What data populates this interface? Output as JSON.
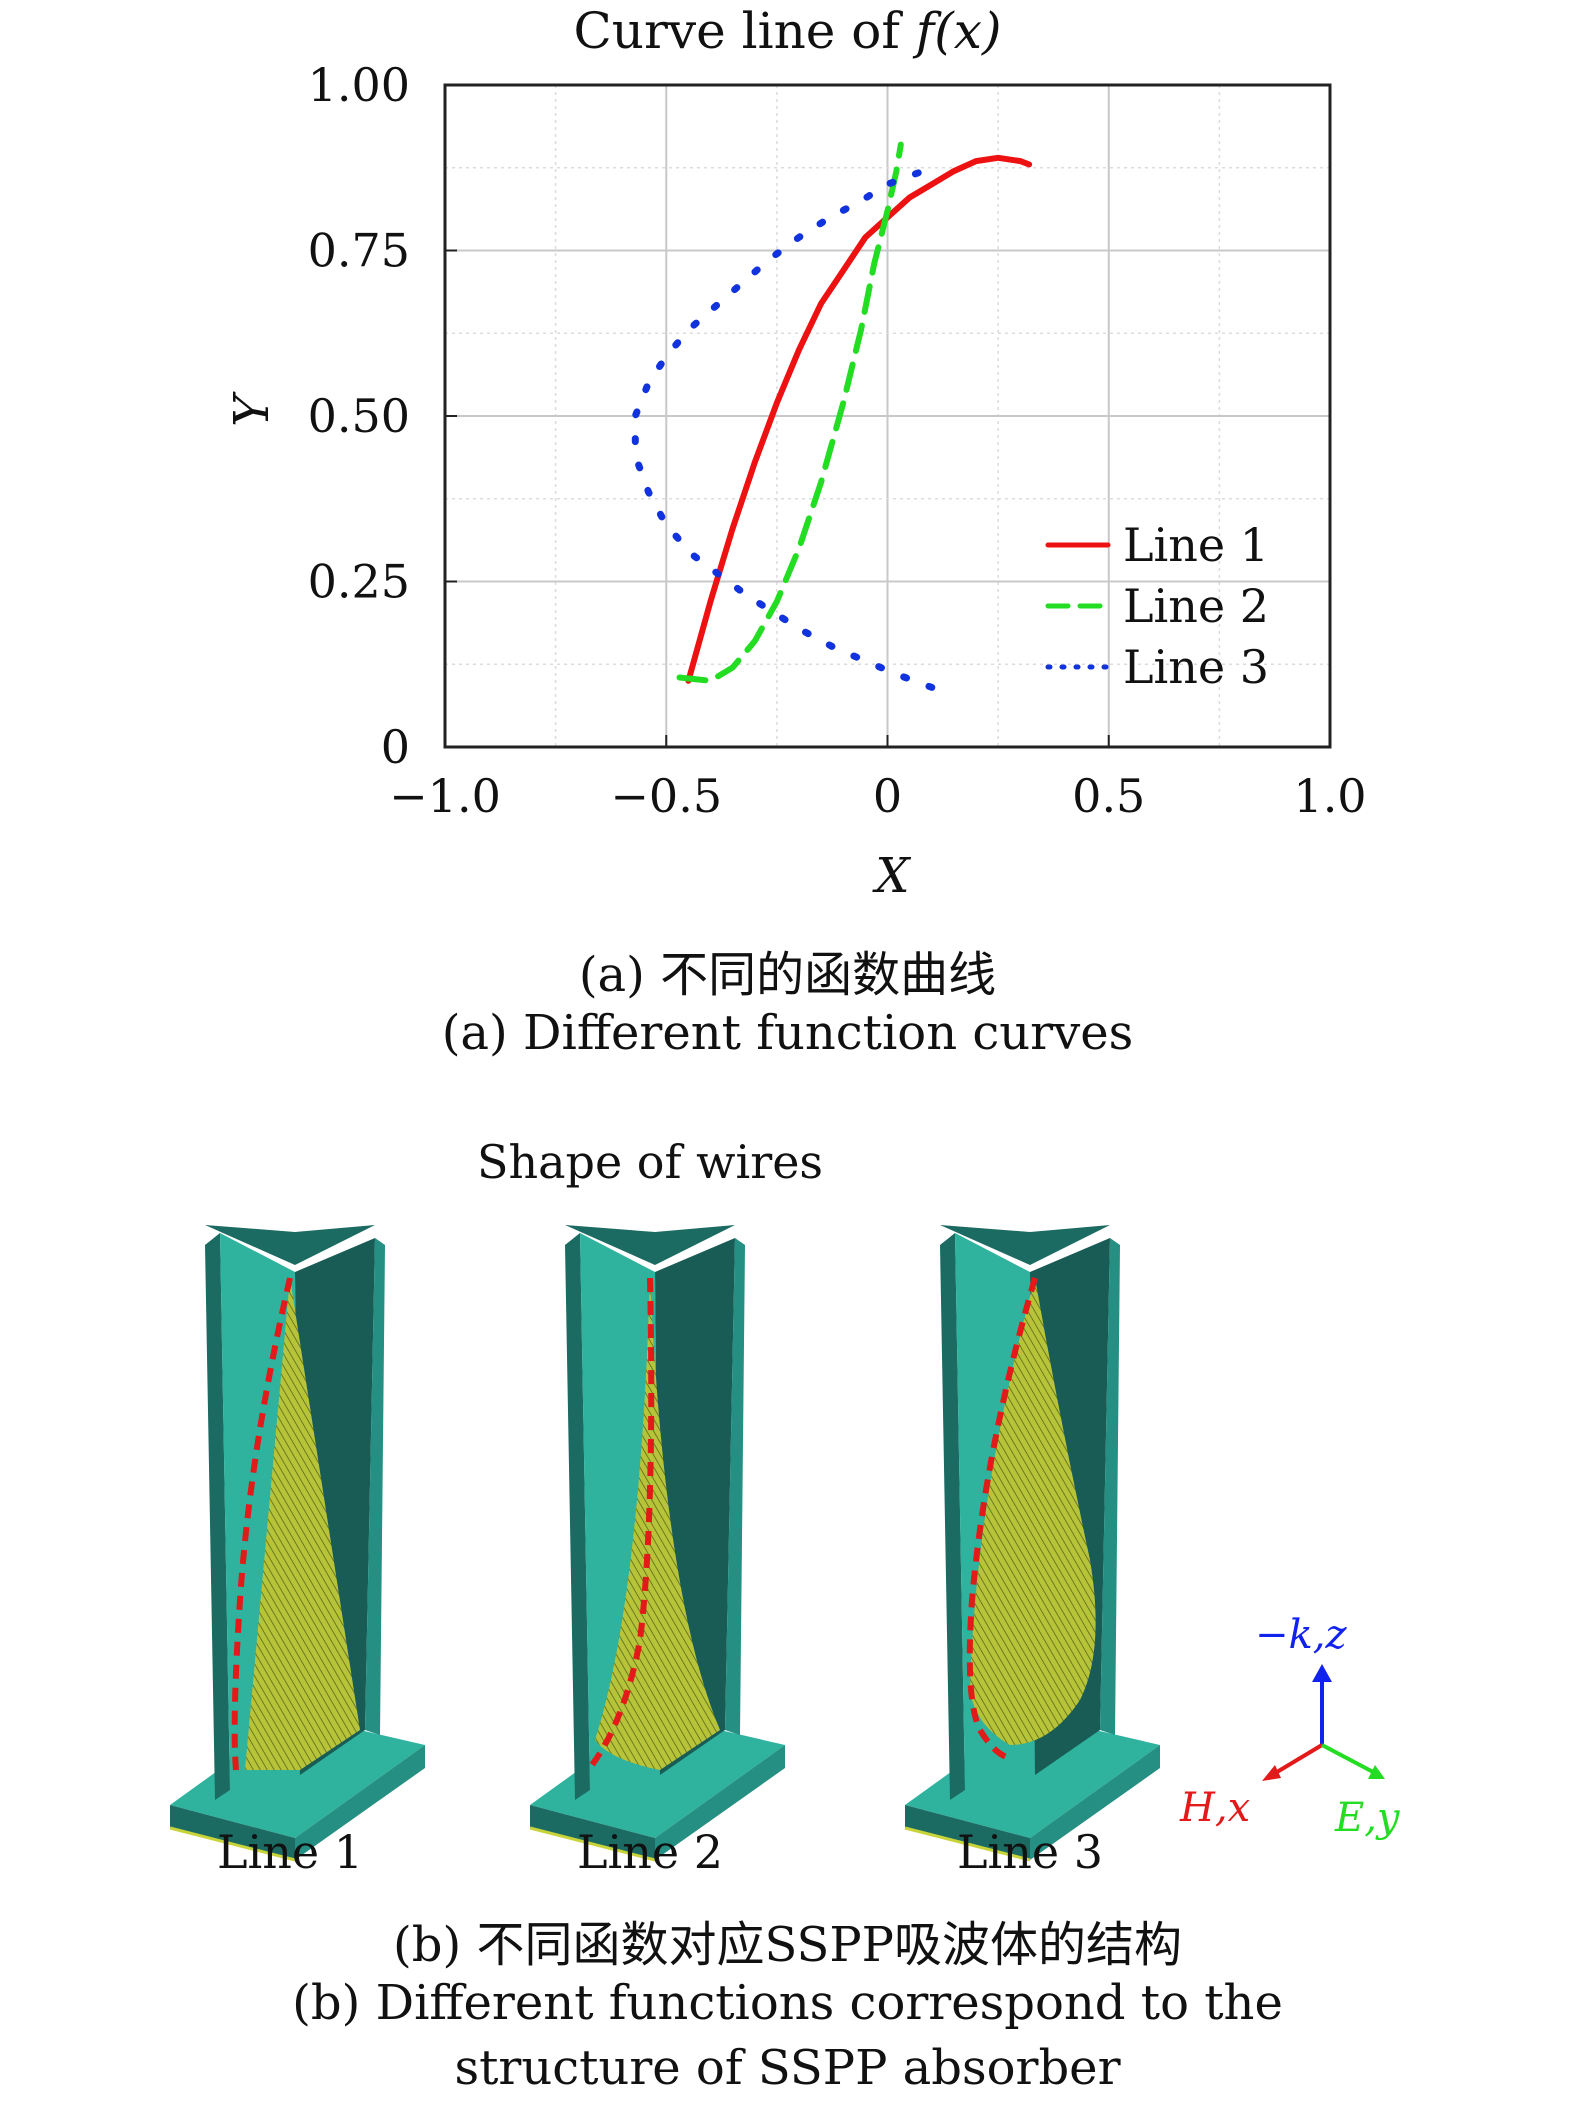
{
  "figure_a": {
    "title_prefix": "Curve line of ",
    "title_math": "f(x)",
    "caption_cn": "(a) 不同的函数曲线",
    "caption_en": "(a) Different function curves"
  },
  "chart_data": {
    "type": "line",
    "title": "Curve line of f(x)",
    "xlabel": "X",
    "ylabel": "Y",
    "xlim": [
      -1.0,
      1.0
    ],
    "ylim": [
      0,
      1.0
    ],
    "xticks": [
      -1.0,
      -0.5,
      0,
      0.5,
      1.0
    ],
    "xtick_labels": [
      "−1.0",
      "−0.5",
      "0",
      "0.5",
      "1.0"
    ],
    "yticks": [
      0,
      0.25,
      0.5,
      0.75,
      1.0
    ],
    "ytick_labels": [
      "0",
      "0.25",
      "0.50",
      "0.75",
      "1.00"
    ],
    "grid": true,
    "legend_position": "bottom-right",
    "series": [
      {
        "name": "Line 1",
        "color": "#ee1111",
        "style": "solid",
        "x": [
          -0.45,
          -0.4,
          -0.35,
          -0.3,
          -0.25,
          -0.2,
          -0.15,
          -0.1,
          -0.05,
          0.0,
          0.05,
          0.1,
          0.15,
          0.2,
          0.25,
          0.3,
          0.32
        ],
        "y": [
          0.1,
          0.22,
          0.33,
          0.43,
          0.52,
          0.6,
          0.67,
          0.72,
          0.77,
          0.8,
          0.83,
          0.85,
          0.87,
          0.885,
          0.89,
          0.885,
          0.88
        ]
      },
      {
        "name": "Line 2",
        "color": "#22dd22",
        "style": "dashed",
        "x": [
          -0.47,
          -0.4,
          -0.35,
          -0.3,
          -0.25,
          -0.2,
          -0.15,
          -0.1,
          -0.06,
          -0.03,
          0.0,
          0.02,
          0.03
        ],
        "y": [
          0.105,
          0.1,
          0.12,
          0.16,
          0.22,
          0.3,
          0.4,
          0.52,
          0.63,
          0.73,
          0.81,
          0.87,
          0.91
        ]
      },
      {
        "name": "Line 3",
        "color": "#1133dd",
        "style": "dotted",
        "x": [
          0.1,
          0.02,
          -0.05,
          -0.12,
          -0.19,
          -0.25,
          -0.32,
          -0.38,
          -0.44,
          -0.5,
          -0.54,
          -0.57,
          -0.57,
          -0.54,
          -0.5,
          -0.45,
          -0.39,
          -0.33,
          -0.27,
          -0.2,
          -0.13,
          -0.06,
          0.0,
          0.08
        ],
        "y": [
          0.09,
          0.11,
          0.13,
          0.15,
          0.175,
          0.2,
          0.23,
          0.26,
          0.29,
          0.335,
          0.385,
          0.44,
          0.5,
          0.55,
          0.59,
          0.63,
          0.665,
          0.7,
          0.735,
          0.77,
          0.8,
          0.825,
          0.85,
          0.87
        ]
      }
    ]
  },
  "figure_b": {
    "title": "Shape of wires",
    "models": [
      {
        "label": "Line 1"
      },
      {
        "label": "Line 2"
      },
      {
        "label": "Line 3"
      }
    ],
    "axes": {
      "z_label": "−k,z",
      "x_label": "H,x",
      "y_label": "E,y",
      "z_color": "#1122ee",
      "x_color": "#e31a1a",
      "y_color": "#22dd22"
    },
    "caption_cn": "(b) 不同函数对应SSPP吸波体的结构",
    "caption_en_line1": "(b) Different functions correspond to the",
    "caption_en_line2": "structure of SSPP absorber"
  },
  "colors": {
    "plate_top": "#2fb39e",
    "plate_dark": "#1b6b63",
    "plate_mid": "#248f82",
    "wire": "#e31a1a",
    "absorber": "#c8d43a"
  }
}
